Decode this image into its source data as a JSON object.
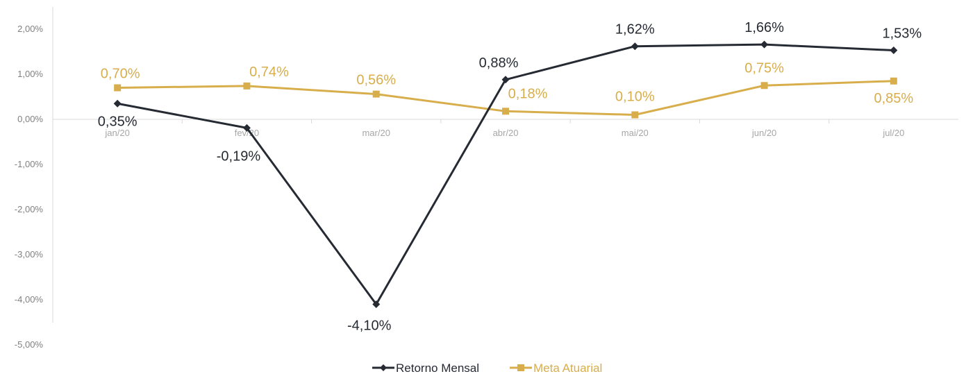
{
  "chart_data": {
    "type": "line",
    "title": "",
    "xlabel": "",
    "ylabel": "",
    "categories": [
      "jan/20",
      "fev/20",
      "mar/20",
      "abr/20",
      "mai/20",
      "jun/20",
      "jul/20"
    ],
    "y_ticks": [
      "2,00%",
      "1,00%",
      "0,00%",
      "-1,00%",
      "-2,00%",
      "-3,00%",
      "-4,00%",
      "-5,00%"
    ],
    "ylim": [
      -5,
      2
    ],
    "grid": false,
    "legend": "bottom-center",
    "series": [
      {
        "name": "Retorno Mensal",
        "color": "#252a33",
        "marker": "diamond",
        "values": [
          0.35,
          -0.19,
          -4.1,
          0.88,
          1.62,
          1.66,
          1.53
        ],
        "labels": [
          "0,35%",
          "-0,19%",
          "-4,10%",
          "0,88%",
          "1,62%",
          "1,66%",
          "1,53%"
        ]
      },
      {
        "name": "Meta Atuarial",
        "color": "#d8ae4c",
        "marker": "square",
        "values": [
          0.7,
          0.74,
          0.56,
          0.18,
          0.1,
          0.75,
          0.85
        ],
        "labels": [
          "0,70%",
          "0,74%",
          "0,56%",
          "0,18%",
          "0,10%",
          "0,75%",
          "0,85%"
        ]
      }
    ]
  }
}
